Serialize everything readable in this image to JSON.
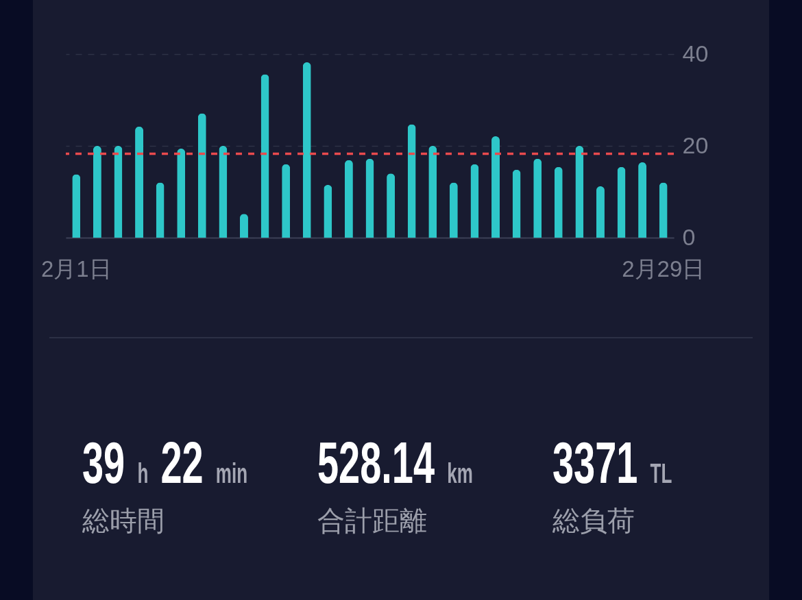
{
  "chart_data": [
    {
      "type": "bar",
      "categories": [
        "2月1日",
        null,
        null,
        null,
        null,
        null,
        null,
        null,
        null,
        null,
        null,
        null,
        null,
        null,
        null,
        null,
        null,
        null,
        null,
        null,
        null,
        null,
        null,
        null,
        null,
        null,
        null,
        null,
        "2月29日"
      ],
      "values": [
        13.8,
        20.0,
        20.0,
        24.2,
        12.0,
        19.4,
        27.1,
        20.0,
        5.2,
        35.6,
        16.0,
        38.2,
        11.5,
        16.9,
        17.2,
        14.0,
        24.7,
        20.0,
        12.0,
        16.0,
        22.1,
        14.8,
        17.2,
        15.4,
        20.0,
        11.2,
        15.4,
        16.4,
        12.0
      ],
      "color": "#2ec7c9",
      "ylim": [
        0,
        40
      ],
      "yticks": [
        0,
        20,
        40
      ],
      "grid": "y",
      "ref_lines": [
        {
          "axis": "y",
          "value": 18.3,
          "color": "#e84a4d",
          "line_style": "dashed"
        }
      ]
    },
    {
      "type": "other",
      "annotations": [
        "39 h 22 min",
        "総時間",
        "528.14 km",
        "合計距離",
        "3371 TL",
        "総負荷"
      ]
    }
  ]
}
